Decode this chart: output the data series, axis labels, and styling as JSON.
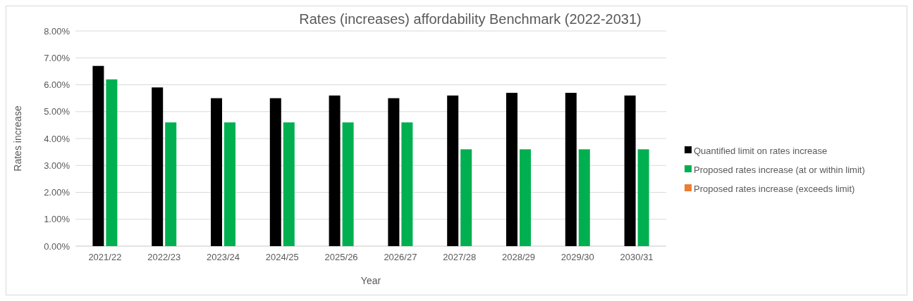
{
  "chart_data": {
    "type": "bar",
    "title": "Rates (increases) affordability Benchmark (2022-2031)",
    "xlabel": "Year",
    "ylabel": "Rates increase",
    "categories": [
      "2021/22",
      "2022/23",
      "2023/24",
      "2024/25",
      "2025/26",
      "2026/27",
      "2027/28",
      "2028/29",
      "2029/30",
      "2030/31"
    ],
    "series": [
      {
        "name": "Quantified limit on rates increase",
        "color": "#000000",
        "values": [
          6.7,
          5.9,
          5.5,
          5.5,
          5.6,
          5.5,
          5.6,
          5.7,
          5.7,
          5.6
        ]
      },
      {
        "name": "Proposed rates increase (at or within limit)",
        "color": "#00b050",
        "values": [
          6.2,
          4.6,
          4.6,
          4.6,
          4.6,
          4.6,
          3.6,
          3.6,
          3.6,
          3.6
        ]
      },
      {
        "name": "Proposed rates increase (exceeds limit)",
        "color": "#ed7d31",
        "values": [
          null,
          null,
          null,
          null,
          null,
          null,
          null,
          null,
          null,
          null
        ]
      }
    ],
    "ylim": [
      0,
      8
    ],
    "yticks": [
      {
        "value": 0,
        "label": "0.00%"
      },
      {
        "value": 1,
        "label": "1.00%"
      },
      {
        "value": 2,
        "label": "2.00%"
      },
      {
        "value": 3,
        "label": "3.00%"
      },
      {
        "value": 4,
        "label": "4.00%"
      },
      {
        "value": 5,
        "label": "5.00%"
      },
      {
        "value": 6,
        "label": "6.00%"
      },
      {
        "value": 7,
        "label": "7.00%"
      },
      {
        "value": 8,
        "label": "8.00%"
      }
    ],
    "grid": "y",
    "legend": "right"
  }
}
